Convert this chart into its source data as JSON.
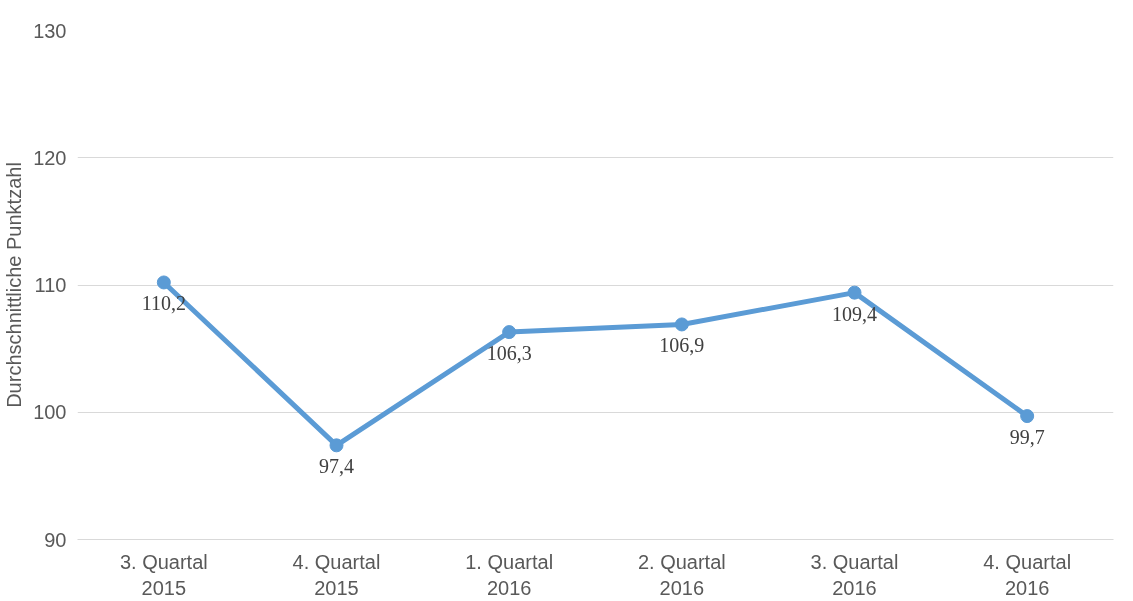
{
  "chart_data": {
    "type": "line",
    "ylabel": "Durchschnittliche Punktzahl",
    "categories": [
      "3. Quartal\n2015",
      "4. Quartal\n2015",
      "1. Quartal\n2016",
      "2. Quartal\n2016",
      "3. Quartal\n2016",
      "4. Quartal\n2016"
    ],
    "series": [
      {
        "color": "#5b9bd5",
        "values": [
          110.2,
          97.4,
          106.3,
          106.9,
          109.4,
          99.7
        ],
        "value_labels": [
          "110,2",
          "97,4",
          "106,3",
          "106,9",
          "109,4",
          "99,7"
        ]
      }
    ],
    "ylim": [
      90,
      130
    ],
    "yticks": [
      90,
      100,
      110,
      120,
      130
    ],
    "grid": "y",
    "marker": "circle",
    "line_style": "solid"
  }
}
